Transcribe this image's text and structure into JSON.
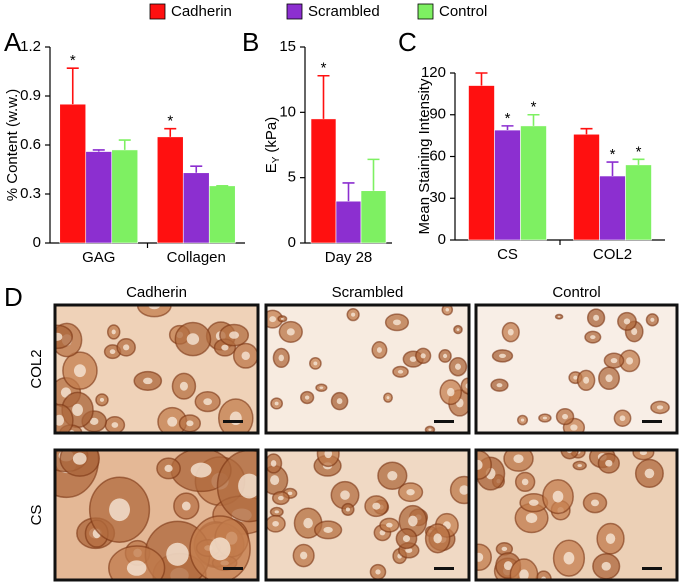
{
  "chart_data": [
    {
      "type": "bar",
      "panel_label": "A",
      "ylabel": "% Content (w.w.)",
      "categories": [
        "GAG",
        "Collagen"
      ],
      "ylim": [
        0,
        1.2
      ],
      "yticks": [
        0,
        0.3,
        0.6,
        0.9,
        1.2
      ],
      "series": [
        {
          "name": "Cadherin",
          "color": "#ff1010",
          "values": [
            0.85,
            0.65
          ],
          "errors": [
            0.22,
            0.05
          ]
        },
        {
          "name": "Scrambled",
          "color": "#8c2fd0",
          "values": [
            0.56,
            0.43
          ],
          "errors": [
            0.01,
            0.04
          ]
        },
        {
          "name": "Control",
          "color": "#7ef062",
          "values": [
            0.57,
            0.35
          ],
          "errors": [
            0.06,
            0
          ]
        }
      ],
      "annotations": [
        {
          "text": "*",
          "series": 0,
          "index": 0
        },
        {
          "text": "*",
          "series": 0,
          "index": 1
        }
      ]
    },
    {
      "type": "bar",
      "panel_label": "B",
      "ylabel": [
        "E",
        "Y",
        "(kPa)"
      ],
      "categories": [
        "Day 28"
      ],
      "ylim": [
        0,
        15
      ],
      "yticks": [
        0,
        5,
        10,
        15
      ],
      "series": [
        {
          "color": "#ff1010",
          "values": [
            9.5
          ],
          "errors": [
            3.3
          ]
        },
        {
          "color": "#8c2fd0",
          "values": [
            3.2
          ],
          "errors": [
            1.4
          ]
        },
        {
          "color": "#7ef062",
          "values": [
            4.0
          ],
          "errors": [
            2.4
          ]
        }
      ],
      "annotations": [
        {
          "text": "*",
          "series": 0,
          "index": 0
        }
      ]
    },
    {
      "type": "bar",
      "panel_label": "C",
      "ylabel": "Mean Staining Intensity",
      "categories": [
        "CS",
        "COL2"
      ],
      "ylim": [
        0,
        120
      ],
      "yticks": [
        0,
        30,
        60,
        90,
        120
      ],
      "series": [
        {
          "color": "#ff1010",
          "values": [
            111,
            76
          ],
          "errors": [
            9,
            4
          ]
        },
        {
          "color": "#8c2fd0",
          "values": [
            79,
            46
          ],
          "errors": [
            3,
            10
          ]
        },
        {
          "color": "#7ef062",
          "values": [
            82,
            54
          ],
          "errors": [
            8,
            4
          ]
        }
      ],
      "annotations": [
        {
          "text": "*",
          "series": 1,
          "index": 0
        },
        {
          "text": "*",
          "series": 2,
          "index": 0
        },
        {
          "text": "*",
          "series": 1,
          "index": 1
        },
        {
          "text": "*",
          "series": 2,
          "index": 1
        }
      ]
    }
  ],
  "histology": {
    "panel_label": "D",
    "columns": [
      "Cadherin",
      "Scrambled",
      "Control"
    ],
    "rows": [
      "COL2",
      "CS"
    ]
  }
}
